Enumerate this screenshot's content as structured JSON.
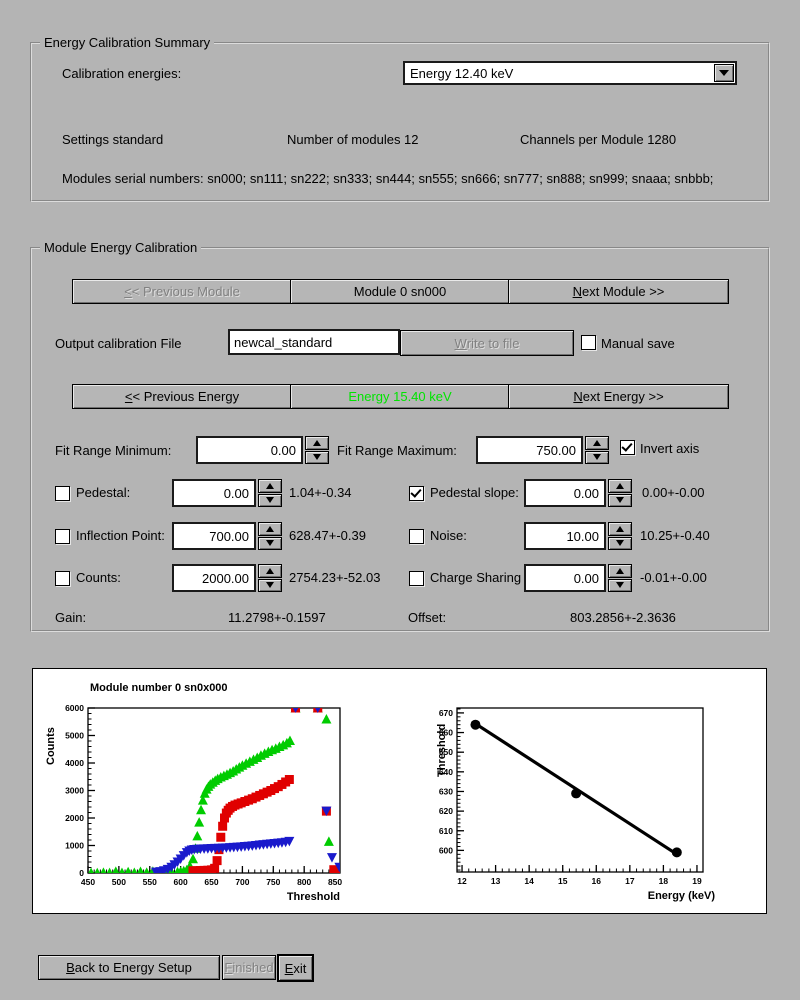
{
  "summary": {
    "title": "Energy Calibration Summary",
    "calibration_energies_label": "Calibration energies:",
    "energy_dropdown_value": "Energy 12.40 keV",
    "settings": "Settings standard",
    "num_modules": "Number of modules 12",
    "channels": "Channels per Module 1280",
    "serials": "Modules serial numbers: sn000; sn111; sn222; sn333; sn444; sn555; sn666; sn777; sn888; sn999; snaaa; snbbb;"
  },
  "module_cal": {
    "title": "Module Energy Calibration",
    "buttons": {
      "prev_module": {
        "pre": "",
        "u": "<",
        "post": "< Previous Module"
      },
      "module": {
        "label": "Module 0 sn000"
      },
      "next_module": {
        "pre": "",
        "u": "N",
        "post": "ext Module >>"
      },
      "prev_energy": {
        "pre": "",
        "u": "<",
        "post": "< Previous Energy"
      },
      "energy": {
        "label": "Energy 15.40 keV",
        "color": "#00e400"
      },
      "next_energy": {
        "pre": "",
        "u": "N",
        "post": "ext Energy >>"
      }
    },
    "output": {
      "label": "Output calibration File",
      "value": "newcal_standard",
      "write": {
        "pre": "",
        "u": "W",
        "post": "rite to file"
      },
      "manual_save": "Manual save",
      "manual_save_checked": false
    },
    "fit": {
      "min_label": "Fit Range Minimum:",
      "min": "0.00",
      "max_label": "Fit Range Maximum:",
      "max": "750.00",
      "invert": "Invert axis",
      "invert_checked": true
    },
    "params": [
      {
        "label": "Pedestal:",
        "value": "0.00",
        "result": "1.04+-0.34",
        "checked": false
      },
      {
        "label": "Pedestal slope:",
        "value": "0.00",
        "result": "0.00+-0.00",
        "checked": true
      },
      {
        "label": "Inflection Point:",
        "value": "700.00",
        "result": "628.47+-0.39",
        "checked": false
      },
      {
        "label": "Noise:",
        "value": "10.00",
        "result": "10.25+-0.40",
        "checked": false
      },
      {
        "label": "Counts:",
        "value": "2000.00",
        "result": "2754.23+-52.03",
        "checked": false
      },
      {
        "label": "Charge Sharing",
        "value": "0.00",
        "result": "-0.01+-0.00",
        "checked": false
      }
    ],
    "gain_label": "Gain:",
    "gain": "11.2798+-0.1597",
    "offset_label": "Offset:",
    "offset": "803.2856+-2.3636"
  },
  "footer": {
    "back": {
      "pre": "",
      "u": "B",
      "post": "ack to Energy Setup"
    },
    "finished": {
      "pre": "",
      "u": "F",
      "post": "inished"
    },
    "exit": {
      "pre": "",
      "u": "E",
      "post": "xit"
    }
  },
  "chart_data": [
    {
      "type": "scatter",
      "title": "Module number 0 sn0x000",
      "xlabel": "Threshold",
      "ylabel": "Counts",
      "xlim": [
        450,
        858
      ],
      "ylim": [
        0,
        6000
      ],
      "xticks": [
        450,
        500,
        550,
        600,
        650,
        700,
        750,
        800,
        850
      ],
      "yticks": [
        0,
        1000,
        2000,
        3000,
        4000,
        5000,
        6000
      ],
      "grid": false,
      "legend": "none",
      "series": [
        {
          "name": "scurve-green",
          "marker": "triangle-up",
          "color": "#00cc00",
          "points": [
            [
              455,
              15
            ],
            [
              465,
              10
            ],
            [
              475,
              25
            ],
            [
              485,
              15
            ],
            [
              495,
              60
            ],
            [
              505,
              20
            ],
            [
              515,
              45
            ],
            [
              525,
              20
            ],
            [
              535,
              55
            ],
            [
              545,
              25
            ],
            [
              555,
              65
            ],
            [
              565,
              35
            ],
            [
              575,
              25
            ],
            [
              585,
              55
            ],
            [
              595,
              45
            ],
            [
              600,
              60
            ],
            [
              605,
              80
            ],
            [
              610,
              120
            ],
            [
              615,
              260
            ],
            [
              620,
              520
            ],
            [
              624,
              900
            ],
            [
              627,
              1350
            ],
            [
              630,
              1850
            ],
            [
              633,
              2300
            ],
            [
              636,
              2650
            ],
            [
              639,
              2900
            ],
            [
              642,
              3050
            ],
            [
              645,
              3150
            ],
            [
              648,
              3230
            ],
            [
              652,
              3300
            ],
            [
              656,
              3370
            ],
            [
              660,
              3430
            ],
            [
              665,
              3490
            ],
            [
              670,
              3540
            ],
            [
              675,
              3590
            ],
            [
              680,
              3650
            ],
            [
              685,
              3710
            ],
            [
              690,
              3780
            ],
            [
              695,
              3850
            ],
            [
              700,
              3920
            ],
            [
              706,
              3990
            ],
            [
              712,
              4060
            ],
            [
              718,
              4130
            ],
            [
              724,
              4200
            ],
            [
              730,
              4280
            ],
            [
              736,
              4350
            ],
            [
              742,
              4420
            ],
            [
              748,
              4480
            ],
            [
              754,
              4530
            ],
            [
              760,
              4600
            ],
            [
              766,
              4660
            ],
            [
              772,
              4730
            ],
            [
              777,
              4820
            ],
            [
              786,
              6000
            ],
            [
              822,
              6000
            ],
            [
              836,
              5600
            ],
            [
              840,
              1150
            ],
            [
              852,
              60
            ]
          ]
        },
        {
          "name": "scurve-red",
          "marker": "square",
          "color": "#e00000",
          "points": [
            [
              620,
              80
            ],
            [
              626,
              85
            ],
            [
              632,
              90
            ],
            [
              638,
              95
            ],
            [
              644,
              100
            ],
            [
              650,
              115
            ],
            [
              655,
              170
            ],
            [
              659,
              450
            ],
            [
              662,
              850
            ],
            [
              665,
              1300
            ],
            [
              668,
              1700
            ],
            [
              671,
              2000
            ],
            [
              674,
              2180
            ],
            [
              677,
              2280
            ],
            [
              680,
              2360
            ],
            [
              684,
              2420
            ],
            [
              688,
              2470
            ],
            [
              693,
              2510
            ],
            [
              698,
              2550
            ],
            [
              704,
              2600
            ],
            [
              710,
              2650
            ],
            [
              716,
              2700
            ],
            [
              722,
              2760
            ],
            [
              728,
              2820
            ],
            [
              734,
              2880
            ],
            [
              740,
              2940
            ],
            [
              746,
              3000
            ],
            [
              752,
              3070
            ],
            [
              758,
              3140
            ],
            [
              764,
              3220
            ],
            [
              770,
              3310
            ],
            [
              776,
              3400
            ],
            [
              786,
              6000
            ],
            [
              822,
              6000
            ],
            [
              836,
              2250
            ],
            [
              848,
              120
            ],
            [
              853,
              20
            ]
          ]
        },
        {
          "name": "scurve-blue",
          "marker": "triangle-down",
          "color": "#1a1acc",
          "points": [
            [
              560,
              30
            ],
            [
              567,
              50
            ],
            [
              573,
              80
            ],
            [
              579,
              130
            ],
            [
              585,
              210
            ],
            [
              590,
              300
            ],
            [
              595,
              400
            ],
            [
              600,
              510
            ],
            [
              605,
              630
            ],
            [
              610,
              740
            ],
            [
              614,
              800
            ],
            [
              618,
              835
            ],
            [
              622,
              855
            ],
            [
              627,
              865
            ],
            [
              632,
              872
            ],
            [
              638,
              878
            ],
            [
              644,
              884
            ],
            [
              650,
              890
            ],
            [
              656,
              896
            ],
            [
              662,
              902
            ],
            [
              668,
              908
            ],
            [
              674,
              915
            ],
            [
              680,
              922
            ],
            [
              686,
              930
            ],
            [
              692,
              940
            ],
            [
              698,
              950
            ],
            [
              704,
              962
            ],
            [
              710,
              975
            ],
            [
              716,
              988
            ],
            [
              722,
              1002
            ],
            [
              728,
              1016
            ],
            [
              734,
              1030
            ],
            [
              740,
              1044
            ],
            [
              746,
              1058
            ],
            [
              752,
              1072
            ],
            [
              758,
              1086
            ],
            [
              764,
              1102
            ],
            [
              770,
              1120
            ],
            [
              776,
              1150
            ],
            [
              786,
              6000
            ],
            [
              822,
              6000
            ],
            [
              836,
              2250
            ],
            [
              845,
              560
            ],
            [
              857,
              210
            ]
          ]
        }
      ]
    },
    {
      "type": "scatter",
      "title": "",
      "xlabel": "Energy (keV)",
      "ylabel": "Threshold",
      "xlim": [
        11.85,
        19.18
      ],
      "ylim": [
        589,
        672.5
      ],
      "xticks": [
        12,
        13,
        14,
        15,
        16,
        17,
        18,
        19
      ],
      "yticks": [
        600,
        610,
        620,
        630,
        640,
        650,
        660,
        670
      ],
      "grid": false,
      "legend": "none",
      "points": [
        [
          12.4,
          664
        ],
        [
          15.4,
          629
        ],
        [
          18.4,
          599
        ]
      ],
      "fit_line": [
        [
          12.4,
          664.5
        ],
        [
          18.45,
          597.5
        ]
      ]
    }
  ]
}
